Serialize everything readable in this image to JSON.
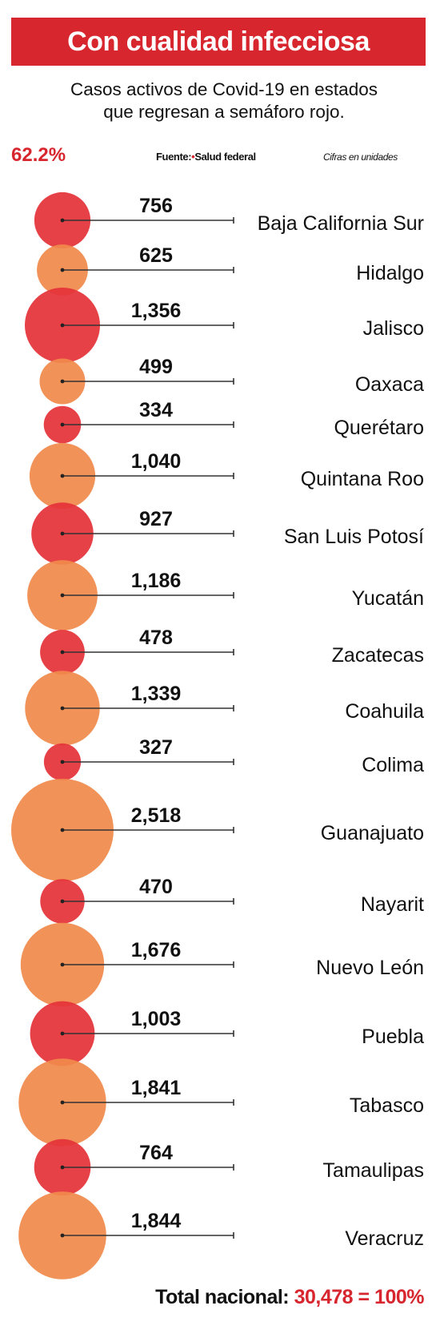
{
  "header": {
    "title": "Con cualidad infecciosa",
    "subtitle_line1": "Casos activos de Covid-19 en estados",
    "subtitle_line2": "que regresan a semáforo rojo.",
    "percentage": "62.2%",
    "source_label": "Fuente:",
    "source_name": "Salud federal",
    "units_note": "Cifras en unidades"
  },
  "footer": {
    "total_label": "Total nacional:",
    "total_value": "30,478 = 100%"
  },
  "colors": {
    "red": "#e5333a",
    "orange": "#f08a4b",
    "line": "#333333"
  },
  "chart_data": {
    "type": "bubble",
    "title": "Con cualidad infecciosa",
    "subtitle": "Casos activos de Covid-19 en estados que regresan a semáforo rojo.",
    "units": "Cifras en unidades",
    "categories": [
      "Baja California Sur",
      "Hidalgo",
      "Jalisco",
      "Oaxaca",
      "Querétaro",
      "Quintana Roo",
      "San Luis Potosí",
      "Yucatán",
      "Zacatecas",
      "Coahuila",
      "Colima",
      "Guanajuato",
      "Nayarit",
      "Nuevo León",
      "Puebla",
      "Tabasco",
      "Tamaulipas",
      "Veracruz"
    ],
    "values": [
      756,
      625,
      1356,
      499,
      334,
      1040,
      927,
      1186,
      478,
      1339,
      327,
      2518,
      470,
      1676,
      1003,
      1841,
      764,
      1844
    ],
    "labels": [
      "756",
      "625",
      "1,356",
      "499",
      "334",
      "1,040",
      "927",
      "1,186",
      "478",
      "1,339",
      "327",
      "2,518",
      "470",
      "1,676",
      "1,003",
      "1,841",
      "764",
      "1,844"
    ],
    "bubble_colors": [
      "red",
      "orange",
      "red",
      "orange",
      "red",
      "orange",
      "red",
      "orange",
      "red",
      "orange",
      "red",
      "orange",
      "red",
      "orange",
      "red",
      "orange",
      "red",
      "orange"
    ],
    "total": 30478
  }
}
